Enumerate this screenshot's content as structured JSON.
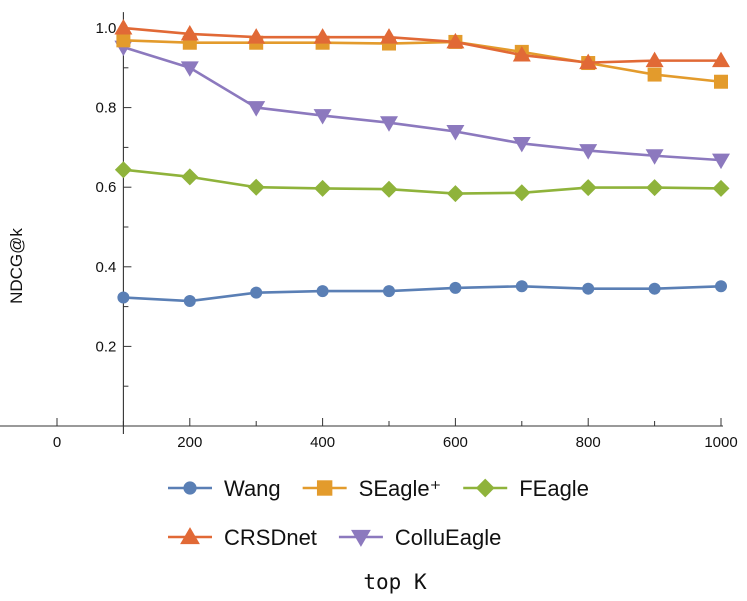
{
  "chart_data": {
    "type": "line",
    "xlabel": "top K",
    "ylabel": "NDCG@k",
    "xlim": [
      -100,
      1000
    ],
    "ylim": [
      0,
      1.04
    ],
    "x_axis_crosses_y_at": 0,
    "y_axis_at_x": 100,
    "xticks": [
      0,
      200,
      400,
      600,
      800,
      1000
    ],
    "yticks": [
      0.2,
      0.4,
      0.6,
      0.8,
      1.0
    ],
    "xtick_labels": [
      "0",
      "200",
      "400",
      "600",
      "800",
      "1000"
    ],
    "ytick_labels": [
      "0.2",
      "0.4",
      "0.6",
      "0.8",
      "1.0"
    ],
    "grid": false,
    "legend_position": "bottom",
    "x": [
      100,
      200,
      300,
      400,
      500,
      600,
      700,
      800,
      900,
      1000
    ],
    "series": [
      {
        "name": "Wang",
        "color": "#5a7fb5",
        "marker": "circle",
        "values": [
          0.323,
          0.314,
          0.335,
          0.339,
          0.339,
          0.347,
          0.351,
          0.345,
          0.345,
          0.351
        ]
      },
      {
        "name": "SEagle⁺",
        "color": "#e39b2c",
        "marker": "square",
        "values": [
          0.969,
          0.963,
          0.963,
          0.963,
          0.961,
          0.965,
          0.94,
          0.912,
          0.883,
          0.865
        ]
      },
      {
        "name": "FEagle",
        "color": "#8fb33b",
        "marker": "diamond",
        "values": [
          0.644,
          0.626,
          0.6,
          0.597,
          0.595,
          0.584,
          0.586,
          0.599,
          0.599,
          0.597
        ]
      },
      {
        "name": "CRSDnet",
        "color": "#e16936",
        "marker": "triangle-up",
        "values": [
          1.0,
          0.985,
          0.977,
          0.977,
          0.977,
          0.965,
          0.932,
          0.913,
          0.918,
          0.918
        ]
      },
      {
        "name": "ColluEagle",
        "color": "#8c79be",
        "marker": "triangle-down",
        "values": [
          0.952,
          0.9,
          0.8,
          0.78,
          0.762,
          0.74,
          0.71,
          0.692,
          0.679,
          0.668
        ]
      }
    ]
  }
}
